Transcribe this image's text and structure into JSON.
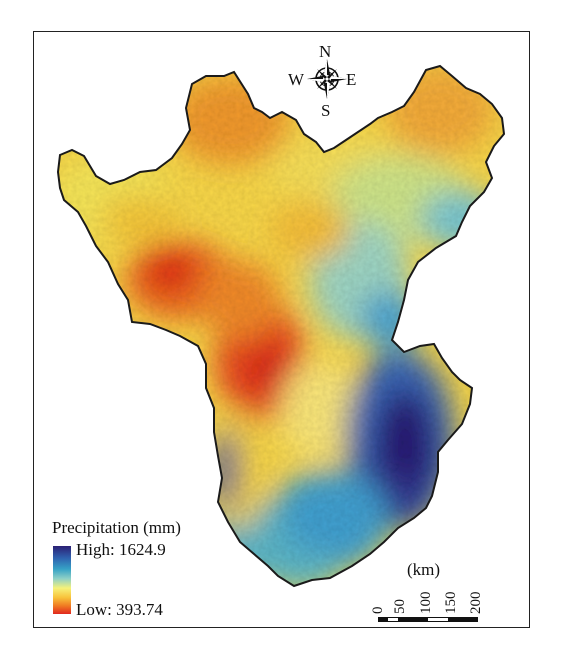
{
  "legend": {
    "title": "Precipitation (mm)",
    "high_label": "High: 1624.9",
    "low_label": "Low: 393.74",
    "high_value": 1624.9,
    "low_value": 393.74,
    "color_high": "#2b1f74",
    "color_low": "#e0281f"
  },
  "compass": {
    "north": "N",
    "south": "S",
    "east": "E",
    "west": "W"
  },
  "scale_bar": {
    "unit": "(km)",
    "ticks": [
      "0",
      "50",
      "100",
      "150",
      "200"
    ]
  },
  "colors": {
    "outline": "#1a1a1a",
    "frame": "#222222"
  }
}
